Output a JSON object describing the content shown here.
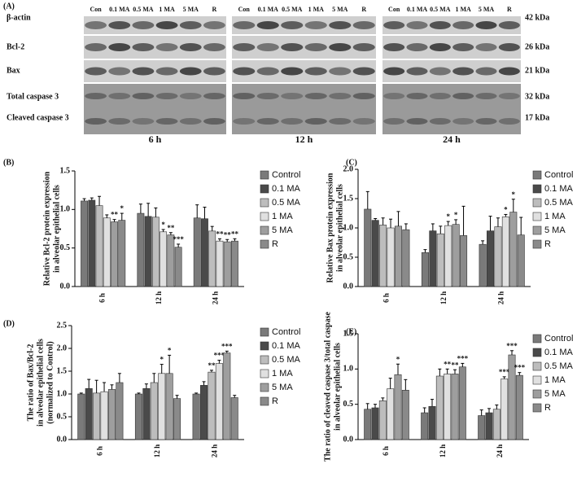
{
  "blot": {
    "panel_label": "(A)",
    "rows": [
      "β-actin",
      "Bcl-2",
      "Bax",
      "Total caspase 3",
      "Cleaved caspase 3"
    ],
    "sizes": [
      "42 kDa",
      "26 kDa",
      "21 kDa",
      "32 kDa",
      "17 kDa"
    ],
    "panels": [
      {
        "time": "6 h",
        "lanes": [
          "Con",
          "0.1 MA",
          "0.5 MA",
          "1 MA",
          "5 MA",
          "R"
        ]
      },
      {
        "time": "12 h",
        "lanes": [
          "Con",
          "0.1 MA",
          "0.5 MA",
          "1 MA",
          "5 MA",
          "R"
        ]
      },
      {
        "time": "24 h",
        "lanes": [
          "Con",
          "0.1 MA",
          "0.5 MA",
          "1 MA",
          "5 MA",
          "R"
        ]
      }
    ]
  },
  "chart_data": [
    {
      "type": "bar",
      "panel_label": "(B)",
      "ylabel": [
        "Relative Bcl-2 protein expression",
        "in alveolar epithelial cells"
      ],
      "categories": [
        "6 h",
        "12 h",
        "24 h"
      ],
      "ylim": [
        0,
        1.5
      ],
      "yticks": [
        {
          "value": 0,
          "label": "0.0"
        },
        {
          "value": 0.5,
          "label": "0.5"
        },
        {
          "value": 1,
          "label": "1.0"
        },
        {
          "value": 1.5,
          "label": "1.5"
        }
      ],
      "series": [
        {
          "name": "Control",
          "color": "#7a7a7a",
          "values": [
            1.11,
            0.95,
            0.89
          ],
          "errors": [
            0.03,
            0.12,
            0.17
          ],
          "annotations": [
            null,
            null,
            null
          ]
        },
        {
          "name": "0.1 MA",
          "color": "#4a4a4a",
          "values": [
            1.12,
            0.91,
            0.88
          ],
          "errors": [
            0.03,
            0.17,
            0.15
          ],
          "annotations": [
            null,
            null,
            null
          ]
        },
        {
          "name": "0.5 MA",
          "color": "#bdbdbd",
          "values": [
            1.05,
            0.9,
            0.72
          ],
          "errors": [
            0.12,
            0.12,
            0.06
          ],
          "annotations": [
            null,
            null,
            null
          ]
        },
        {
          "name": "1 MA",
          "color": "#e0e0e0",
          "values": [
            0.89,
            0.71,
            0.59
          ],
          "errors": [
            0.04,
            0.03,
            0.03
          ],
          "annotations": [
            null,
            "*",
            "**"
          ]
        },
        {
          "name": "5 MA",
          "color": "#9e9e9e",
          "values": [
            0.84,
            0.67,
            0.58
          ],
          "errors": [
            0.03,
            0.03,
            0.03
          ],
          "annotations": [
            "**",
            "**",
            "**"
          ]
        },
        {
          "name": "R",
          "color": "#8a8a8a",
          "values": [
            0.86,
            0.51,
            0.59
          ],
          "errors": [
            0.09,
            0.04,
            0.03
          ],
          "annotations": [
            "*",
            "***",
            "**"
          ]
        }
      ]
    },
    {
      "type": "bar",
      "panel_label": "(C)",
      "ylabel": [
        "Relative Bax protein expression",
        "in alveolar epithelial cells"
      ],
      "categories": [
        "6 h",
        "12 h",
        "24 h"
      ],
      "ylim": [
        0,
        2
      ],
      "yticks": [
        {
          "value": 0,
          "label": "0.0"
        },
        {
          "value": 0.5,
          "label": "0.5"
        },
        {
          "value": 1,
          "label": "1.0"
        },
        {
          "value": 1.5,
          "label": "1.5"
        },
        {
          "value": 2,
          "label": "2.0"
        }
      ],
      "series": [
        {
          "name": "Control",
          "color": "#7a7a7a",
          "values": [
            1.32,
            0.58,
            0.72
          ],
          "errors": [
            0.3,
            0.05,
            0.06
          ],
          "annotations": [
            null,
            null,
            null
          ]
        },
        {
          "name": "0.1 MA",
          "color": "#4a4a4a",
          "values": [
            1.13,
            0.95,
            0.95
          ],
          "errors": [
            0.03,
            0.12,
            0.25
          ],
          "annotations": [
            null,
            null,
            null
          ]
        },
        {
          "name": "0.5 MA",
          "color": "#bdbdbd",
          "values": [
            1.05,
            0.9,
            1.02
          ],
          "errors": [
            0.12,
            0.13,
            0.15
          ],
          "annotations": [
            null,
            null,
            null
          ]
        },
        {
          "name": "1 MA",
          "color": "#e0e0e0",
          "values": [
            1,
            1.04,
            1.19
          ],
          "errors": [
            0.15,
            0.07,
            0.04
          ],
          "annotations": [
            null,
            "*",
            "*"
          ]
        },
        {
          "name": "5 MA",
          "color": "#9e9e9e",
          "values": [
            1.03,
            1.06,
            1.27
          ],
          "errors": [
            0.25,
            0.08,
            0.22
          ],
          "annotations": [
            null,
            "*",
            "*"
          ]
        },
        {
          "name": "R",
          "color": "#8a8a8a",
          "values": [
            0.97,
            0.87,
            0.88
          ],
          "errors": [
            0.1,
            0.5,
            0.3
          ],
          "annotations": [
            null,
            null,
            null
          ]
        }
      ]
    },
    {
      "type": "bar",
      "panel_label": "(D)",
      "ylabel": [
        "The ratio of Bax/Bcl-2",
        "in alveolar epithelial cells",
        "(normalized to Control)"
      ],
      "categories": [
        "6 h",
        "12 h",
        "24 h"
      ],
      "ylim": [
        0,
        2.5
      ],
      "yticks": [
        {
          "value": 0,
          "label": "0.0"
        },
        {
          "value": 0.5,
          "label": "0.5"
        },
        {
          "value": 1,
          "label": "1.0"
        },
        {
          "value": 1.5,
          "label": "1.5"
        },
        {
          "value": 2,
          "label": "2.0"
        },
        {
          "value": 2.5,
          "label": "2.5"
        }
      ],
      "series": [
        {
          "name": "Control",
          "color": "#7a7a7a",
          "values": [
            1,
            1,
            1
          ],
          "errors": [
            0.02,
            0.02,
            0.02
          ],
          "annotations": [
            null,
            null,
            null
          ]
        },
        {
          "name": "0.1 MA",
          "color": "#4a4a4a",
          "values": [
            1.12,
            1.12,
            1.19
          ],
          "errors": [
            0.2,
            0.1,
            0.08
          ],
          "annotations": [
            null,
            null,
            null
          ]
        },
        {
          "name": "0.5 MA",
          "color": "#bdbdbd",
          "values": [
            1.02,
            1.25,
            1.48
          ],
          "errors": [
            0.28,
            0.2,
            0.04
          ],
          "annotations": [
            null,
            null,
            "**"
          ]
        },
        {
          "name": "1 MA",
          "color": "#e0e0e0",
          "values": [
            1.05,
            1.45,
            1.67
          ],
          "errors": [
            0.2,
            0.2,
            0.07
          ],
          "annotations": [
            null,
            "*",
            "***"
          ]
        },
        {
          "name": "5 MA",
          "color": "#9e9e9e",
          "values": [
            1.1,
            1.45,
            1.9
          ],
          "errors": [
            0.1,
            0.4,
            0.04
          ],
          "annotations": [
            null,
            "*",
            "***"
          ]
        },
        {
          "name": "R",
          "color": "#8a8a8a",
          "values": [
            1.25,
            0.9,
            0.92
          ],
          "errors": [
            0.2,
            0.07,
            0.05
          ],
          "annotations": [
            null,
            null,
            null
          ]
        }
      ]
    },
    {
      "type": "bar",
      "panel_label": "(E)",
      "ylabel": [
        "The ratio of cleaved caspase 3/total caspase",
        "in alveolar epithelial cells"
      ],
      "categories": [
        "6 h",
        "12 h",
        "24 h"
      ],
      "ylim": [
        0,
        1.5
      ],
      "yticks": [
        {
          "value": 0,
          "label": "0.0"
        },
        {
          "value": 0.5,
          "label": "0.5"
        },
        {
          "value": 1,
          "label": "1.0"
        },
        {
          "value": 1.5,
          "label": "1.5"
        }
      ],
      "series": [
        {
          "name": "Control",
          "color": "#7a7a7a",
          "values": [
            0.43,
            0.38,
            0.34
          ],
          "errors": [
            0.08,
            0.07,
            0.08
          ],
          "annotations": [
            null,
            null,
            null
          ]
        },
        {
          "name": "0.1 MA",
          "color": "#4a4a4a",
          "values": [
            0.45,
            0.47,
            0.38
          ],
          "errors": [
            0.05,
            0.1,
            0.06
          ],
          "annotations": [
            null,
            null,
            null
          ]
        },
        {
          "name": "0.5 MA",
          "color": "#bdbdbd",
          "values": [
            0.55,
            0.9,
            0.43
          ],
          "errors": [
            0.04,
            0.1,
            0.06
          ],
          "annotations": [
            null,
            null,
            null
          ]
        },
        {
          "name": "1 MA",
          "color": "#e0e0e0",
          "values": [
            0.72,
            0.93,
            0.86
          ],
          "errors": [
            0.15,
            0.07,
            0.03
          ],
          "annotations": [
            null,
            "**",
            "***"
          ]
        },
        {
          "name": "5 MA",
          "color": "#9e9e9e",
          "values": [
            0.92,
            0.93,
            1.2
          ],
          "errors": [
            0.15,
            0.06,
            0.06
          ],
          "annotations": [
            "*",
            "**",
            "***"
          ]
        },
        {
          "name": "R",
          "color": "#8a8a8a",
          "values": [
            0.7,
            1.03,
            0.91
          ],
          "errors": [
            0.15,
            0.05,
            0.04
          ],
          "annotations": [
            null,
            "***",
            "***"
          ]
        }
      ]
    }
  ]
}
